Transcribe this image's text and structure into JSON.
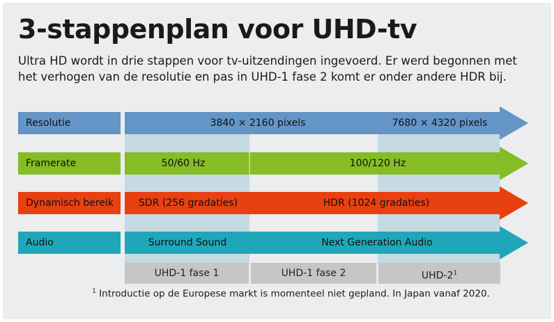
{
  "title": "3-stappenplan voor UHD-tv",
  "intro": "Ultra HD wordt in drie stappen voor tv-uitzendingen ingevoerd. Er werd begonnen met het verhogen van de resolutie en pas in UHD-1 fase 2 komt er onder andere HDR bij.",
  "colors": {
    "resolutie": "#6495c6",
    "framerate": "#86bc25",
    "bereik": "#e84011",
    "audio": "#1fa7b9",
    "shade": "#c5dae2",
    "phase": "#c6c6c6"
  },
  "rows": [
    {
      "label": "Resolutie",
      "segments": [
        "3840 × 2160 pixels",
        "7680 × 4320 pixels"
      ]
    },
    {
      "label": "Framerate",
      "segments": [
        "50/60 Hz",
        "100/120 Hz"
      ]
    },
    {
      "label": "Dynamisch bereik",
      "segments": [
        "SDR (256 gradaties)",
        "HDR (1024 gradaties)"
      ]
    },
    {
      "label": "Audio",
      "segments": [
        "Surround Sound",
        "Next Generation Audio"
      ]
    }
  ],
  "phases": [
    "UHD-1 fase 1",
    "UHD-1 fase 2",
    "UHD-2"
  ],
  "phase_footnote_mark": "1",
  "footnote_mark": "1",
  "footnote": "Introductie op de Europese markt is momenteel niet gepland. In Japan vanaf 2020."
}
